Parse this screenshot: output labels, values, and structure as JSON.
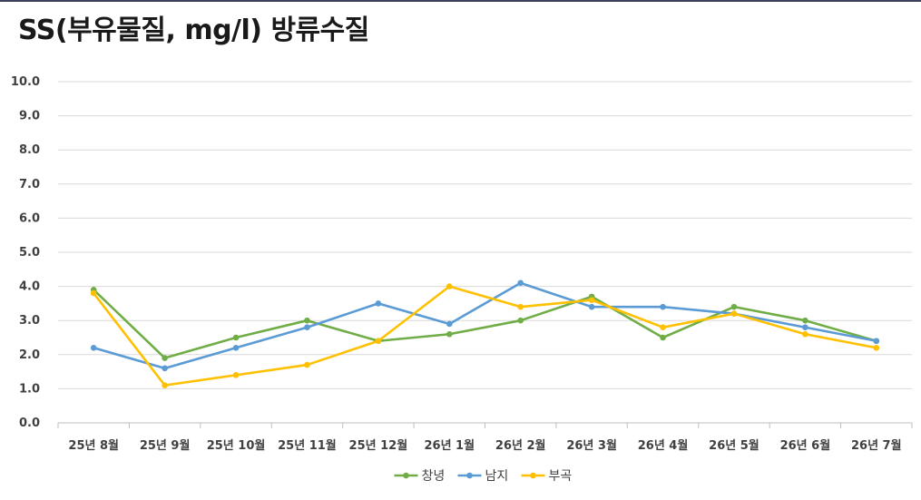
{
  "chart_data": {
    "type": "line",
    "title": "SS(부유물질, mg/l) 방류수질",
    "xlabel": "",
    "ylabel": "",
    "ylim": [
      0,
      10
    ],
    "yticks": [
      "0.0",
      "1.0",
      "2.0",
      "3.0",
      "4.0",
      "5.0",
      "6.0",
      "7.0",
      "8.0",
      "9.0",
      "10.0"
    ],
    "grid": true,
    "legend_position": "bottom",
    "categories": [
      "25년 8월",
      "25년 9월",
      "25년 10월",
      "25년 11월",
      "25년 12월",
      "26년 1월",
      "26년 2월",
      "26년 3월",
      "26년 4월",
      "26년 5월",
      "26년 6월",
      "26년 7월"
    ],
    "series": [
      {
        "name": "창녕",
        "color": "#70ad47",
        "values": [
          3.9,
          1.9,
          2.5,
          3.0,
          2.4,
          2.6,
          3.0,
          3.7,
          2.5,
          3.4,
          3.0,
          2.4
        ]
      },
      {
        "name": "남지",
        "color": "#5b9bd5",
        "values": [
          2.2,
          1.6,
          2.2,
          2.8,
          3.5,
          2.9,
          4.1,
          3.4,
          3.4,
          3.2,
          2.8,
          2.4
        ]
      },
      {
        "name": "부곡",
        "color": "#ffc000",
        "values": [
          3.8,
          1.1,
          1.4,
          1.7,
          2.4,
          4.0,
          3.4,
          3.6,
          2.8,
          3.2,
          2.6,
          2.2
        ]
      }
    ]
  }
}
